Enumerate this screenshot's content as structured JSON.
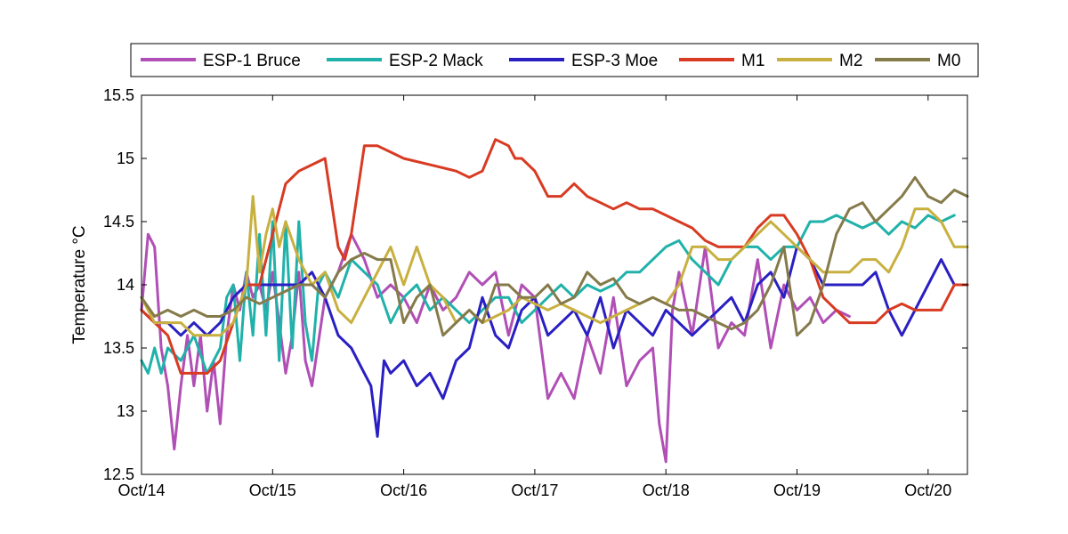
{
  "chart_data": {
    "type": "line",
    "title": "",
    "xlabel": "",
    "ylabel": "Temperature °C",
    "ylim": [
      12.5,
      15.5
    ],
    "xlim": [
      0,
      6.3
    ],
    "yticks": [
      12.5,
      13,
      13.5,
      14,
      14.5,
      15,
      15.5
    ],
    "ytick_labels": [
      "12.5",
      "13",
      "13.5",
      "14",
      "14.5",
      "15",
      "15.5"
    ],
    "xticks": [
      0,
      1,
      2,
      3,
      4,
      5,
      6
    ],
    "xtick_labels": [
      "Oct/14",
      "Oct/15",
      "Oct/16",
      "Oct/17",
      "Oct/18",
      "Oct/19",
      "Oct/20"
    ],
    "grid": false,
    "legend_position": "top",
    "series": [
      {
        "name": "ESP-1 Bruce",
        "color": "#b04fb5",
        "x": [
          0,
          0.05,
          0.1,
          0.15,
          0.2,
          0.25,
          0.3,
          0.35,
          0.4,
          0.45,
          0.5,
          0.55,
          0.6,
          0.65,
          0.7,
          0.75,
          0.8,
          0.85,
          0.9,
          0.95,
          1.0,
          1.05,
          1.1,
          1.15,
          1.2,
          1.25,
          1.3,
          1.4,
          1.5,
          1.6,
          1.7,
          1.8,
          1.9,
          2.0,
          2.1,
          2.2,
          2.3,
          2.4,
          2.5,
          2.6,
          2.7,
          2.8,
          2.9,
          3.0,
          3.1,
          3.2,
          3.3,
          3.4,
          3.5,
          3.6,
          3.7,
          3.8,
          3.9,
          3.95,
          4.0,
          4.05,
          4.1,
          4.2,
          4.3,
          4.4,
          4.5,
          4.6,
          4.7,
          4.8,
          4.9,
          5.0,
          5.1,
          5.2,
          5.3,
          5.4
        ],
        "values": [
          13.8,
          14.4,
          14.3,
          13.5,
          13.2,
          12.7,
          13.2,
          13.6,
          13.2,
          13.6,
          13.0,
          13.4,
          12.9,
          13.6,
          14.0,
          13.8,
          14.1,
          13.9,
          14.0,
          13.8,
          14.1,
          13.7,
          13.3,
          13.6,
          14.1,
          13.4,
          13.2,
          13.9,
          14.1,
          14.4,
          14.2,
          13.9,
          14.0,
          13.9,
          13.7,
          14.0,
          13.8,
          13.9,
          14.1,
          14.0,
          14.1,
          13.6,
          14.0,
          13.9,
          13.1,
          13.3,
          13.1,
          13.6,
          13.3,
          13.9,
          13.2,
          13.4,
          13.5,
          12.9,
          12.6,
          13.8,
          14.1,
          13.6,
          14.3,
          13.5,
          13.7,
          13.6,
          14.2,
          13.5,
          14.0,
          13.8,
          13.9,
          13.7,
          13.8,
          13.75
        ]
      },
      {
        "name": "ESP-2 Mack",
        "color": "#20b2aa",
        "x": [
          0,
          0.05,
          0.1,
          0.15,
          0.2,
          0.3,
          0.4,
          0.5,
          0.6,
          0.65,
          0.7,
          0.75,
          0.8,
          0.85,
          0.9,
          0.95,
          1.0,
          1.05,
          1.1,
          1.15,
          1.2,
          1.25,
          1.3,
          1.35,
          1.4,
          1.5,
          1.6,
          1.7,
          1.8,
          1.9,
          2.0,
          2.1,
          2.2,
          2.3,
          2.4,
          2.5,
          2.6,
          2.7,
          2.8,
          2.9,
          3.0,
          3.1,
          3.2,
          3.3,
          3.4,
          3.5,
          3.6,
          3.7,
          3.8,
          3.9,
          4.0,
          4.1,
          4.2,
          4.3,
          4.4,
          4.5,
          4.6,
          4.7,
          4.8,
          4.9,
          5.0,
          5.1,
          5.2,
          5.3,
          5.4,
          5.5,
          5.6,
          5.7,
          5.8,
          5.9,
          6.0,
          6.1,
          6.2
        ],
        "values": [
          13.4,
          13.3,
          13.5,
          13.3,
          13.5,
          13.4,
          13.6,
          13.3,
          13.5,
          13.9,
          14.0,
          13.4,
          14.1,
          13.6,
          14.4,
          13.6,
          14.5,
          13.4,
          14.5,
          13.5,
          14.5,
          13.7,
          13.4,
          14.0,
          14.1,
          13.9,
          14.2,
          14.1,
          14.0,
          13.7,
          13.9,
          14.0,
          13.8,
          13.9,
          13.8,
          13.7,
          13.8,
          13.9,
          13.9,
          13.7,
          13.8,
          13.9,
          14.0,
          13.9,
          14.0,
          13.95,
          14.0,
          14.1,
          14.1,
          14.2,
          14.3,
          14.35,
          14.2,
          14.1,
          14.0,
          14.2,
          14.3,
          14.3,
          14.2,
          14.3,
          14.3,
          14.5,
          14.5,
          14.55,
          14.5,
          14.45,
          14.5,
          14.4,
          14.5,
          14.45,
          14.55,
          14.5,
          14.55
        ]
      },
      {
        "name": "ESP-3 Moe",
        "color": "#2a1fc2",
        "x": [
          0,
          0.1,
          0.2,
          0.3,
          0.4,
          0.5,
          0.6,
          0.7,
          0.8,
          0.9,
          1.0,
          1.1,
          1.2,
          1.3,
          1.4,
          1.5,
          1.6,
          1.7,
          1.75,
          1.8,
          1.85,
          1.9,
          2.0,
          2.1,
          2.2,
          2.3,
          2.4,
          2.5,
          2.6,
          2.7,
          2.8,
          2.9,
          3.0,
          3.1,
          3.2,
          3.3,
          3.4,
          3.5,
          3.6,
          3.7,
          3.8,
          3.9,
          4.0,
          4.1,
          4.2,
          4.3,
          4.4,
          4.5,
          4.6,
          4.7,
          4.8,
          4.9,
          5.0,
          5.1,
          5.2,
          5.3,
          5.4,
          5.5,
          5.6,
          5.7,
          5.8,
          5.9,
          6.0,
          6.1,
          6.2,
          6.3
        ],
        "values": [
          13.8,
          13.7,
          13.7,
          13.6,
          13.7,
          13.6,
          13.7,
          13.9,
          14.0,
          14.0,
          14.0,
          14.0,
          14.0,
          14.1,
          13.9,
          13.6,
          13.5,
          13.3,
          13.2,
          12.8,
          13.4,
          13.3,
          13.4,
          13.2,
          13.3,
          13.1,
          13.4,
          13.5,
          13.9,
          13.6,
          13.5,
          13.8,
          13.9,
          13.6,
          13.7,
          13.8,
          13.6,
          13.9,
          13.5,
          13.8,
          13.7,
          13.6,
          13.8,
          13.7,
          13.6,
          13.7,
          13.8,
          13.9,
          13.7,
          14.0,
          14.1,
          13.9,
          14.3,
          14.2,
          14.0,
          14.0,
          14.0,
          14.0,
          14.1,
          13.8,
          13.6,
          13.8,
          14.0,
          14.2,
          14.0,
          14.0
        ]
      },
      {
        "name": "M1",
        "color": "#d83a22",
        "x": [
          0,
          0.2,
          0.3,
          0.4,
          0.5,
          0.6,
          0.7,
          0.8,
          0.9,
          1.0,
          1.1,
          1.2,
          1.3,
          1.4,
          1.5,
          1.55,
          1.6,
          1.7,
          1.8,
          1.9,
          2.0,
          2.2,
          2.4,
          2.5,
          2.6,
          2.7,
          2.8,
          2.85,
          2.9,
          3.0,
          3.1,
          3.2,
          3.3,
          3.4,
          3.5,
          3.6,
          3.7,
          3.8,
          3.9,
          4.0,
          4.1,
          4.2,
          4.3,
          4.4,
          4.5,
          4.6,
          4.7,
          4.8,
          4.9,
          5.0,
          5.1,
          5.2,
          5.3,
          5.4,
          5.5,
          5.6,
          5.7,
          5.8,
          5.9,
          6.0,
          6.1,
          6.2,
          6.3
        ],
        "values": [
          13.8,
          13.6,
          13.3,
          13.3,
          13.3,
          13.4,
          13.7,
          14.0,
          14.0,
          14.4,
          14.8,
          14.9,
          14.95,
          15.0,
          14.3,
          14.2,
          14.4,
          15.1,
          15.1,
          15.05,
          15.0,
          14.95,
          14.9,
          14.85,
          14.9,
          15.15,
          15.1,
          15.0,
          15.0,
          14.9,
          14.7,
          14.7,
          14.8,
          14.7,
          14.65,
          14.6,
          14.65,
          14.6,
          14.6,
          14.55,
          14.5,
          14.45,
          14.35,
          14.3,
          14.3,
          14.3,
          14.45,
          14.55,
          14.55,
          14.4,
          14.2,
          13.9,
          13.8,
          13.7,
          13.7,
          13.7,
          13.8,
          13.85,
          13.8,
          13.8,
          13.8,
          14.0,
          14.0
        ]
      },
      {
        "name": "M2",
        "color": "#c8b040",
        "x": [
          0,
          0.1,
          0.2,
          0.3,
          0.4,
          0.5,
          0.6,
          0.7,
          0.8,
          0.85,
          0.9,
          0.95,
          1.0,
          1.05,
          1.1,
          1.2,
          1.3,
          1.4,
          1.5,
          1.6,
          1.7,
          1.8,
          1.9,
          2.0,
          2.1,
          2.2,
          2.3,
          2.4,
          2.5,
          2.6,
          2.7,
          2.8,
          2.9,
          3.0,
          3.1,
          3.2,
          3.3,
          3.4,
          3.5,
          3.6,
          3.7,
          3.8,
          3.9,
          4.0,
          4.1,
          4.2,
          4.3,
          4.4,
          4.5,
          4.6,
          4.7,
          4.8,
          4.9,
          5.0,
          5.1,
          5.2,
          5.3,
          5.4,
          5.5,
          5.6,
          5.7,
          5.8,
          5.9,
          6.0,
          6.1,
          6.2,
          6.3
        ],
        "values": [
          13.9,
          13.7,
          13.7,
          13.7,
          13.6,
          13.6,
          13.6,
          13.7,
          14.0,
          14.7,
          14.1,
          14.4,
          14.6,
          14.3,
          14.5,
          14.2,
          14.0,
          14.1,
          13.8,
          13.7,
          13.9,
          14.1,
          14.3,
          14.0,
          14.3,
          14.0,
          13.9,
          13.7,
          13.8,
          13.7,
          13.75,
          13.8,
          13.9,
          13.85,
          13.8,
          13.85,
          13.8,
          13.75,
          13.7,
          13.75,
          13.8,
          13.85,
          13.9,
          13.85,
          14.0,
          14.3,
          14.3,
          14.2,
          14.2,
          14.3,
          14.4,
          14.5,
          14.4,
          14.3,
          14.2,
          14.1,
          14.1,
          14.1,
          14.2,
          14.2,
          14.1,
          14.3,
          14.6,
          14.6,
          14.5,
          14.3,
          14.3
        ]
      },
      {
        "name": "M0",
        "color": "#857a4a",
        "x": [
          0,
          0.1,
          0.2,
          0.3,
          0.4,
          0.5,
          0.6,
          0.7,
          0.8,
          0.9,
          1.0,
          1.1,
          1.2,
          1.3,
          1.4,
          1.5,
          1.6,
          1.7,
          1.8,
          1.9,
          2.0,
          2.1,
          2.2,
          2.3,
          2.4,
          2.5,
          2.6,
          2.7,
          2.8,
          2.9,
          3.0,
          3.1,
          3.2,
          3.3,
          3.4,
          3.5,
          3.6,
          3.7,
          3.8,
          3.9,
          4.0,
          4.1,
          4.2,
          4.3,
          4.4,
          4.5,
          4.6,
          4.7,
          4.8,
          4.9,
          5.0,
          5.1,
          5.2,
          5.3,
          5.4,
          5.5,
          5.6,
          5.7,
          5.8,
          5.9,
          6.0,
          6.1,
          6.2,
          6.3
        ],
        "values": [
          13.9,
          13.75,
          13.8,
          13.75,
          13.8,
          13.75,
          13.75,
          13.8,
          13.9,
          13.85,
          13.9,
          13.95,
          14.0,
          14.0,
          13.9,
          14.1,
          14.2,
          14.25,
          14.2,
          14.2,
          13.7,
          13.9,
          14.0,
          13.6,
          13.7,
          13.8,
          13.7,
          14.0,
          14.0,
          13.9,
          13.9,
          14.0,
          13.85,
          13.9,
          14.1,
          14.0,
          14.05,
          13.9,
          13.85,
          13.9,
          13.85,
          13.8,
          13.8,
          13.75,
          13.7,
          13.65,
          13.7,
          13.8,
          14.0,
          14.3,
          13.6,
          13.7,
          14.0,
          14.4,
          14.6,
          14.65,
          14.5,
          14.6,
          14.7,
          14.85,
          14.7,
          14.65,
          14.75,
          14.7
        ]
      }
    ]
  }
}
